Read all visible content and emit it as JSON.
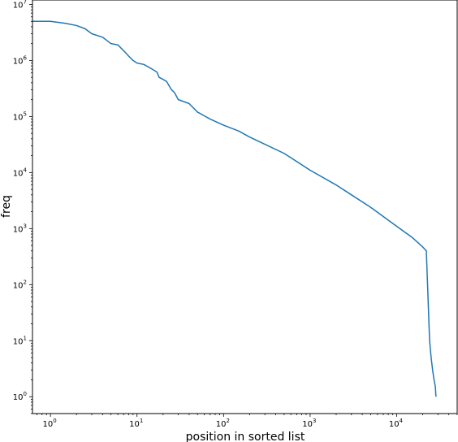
{
  "chart_data": {
    "type": "line",
    "title": "",
    "xlabel": "position in sorted list",
    "ylabel": "freq",
    "xscale": "log",
    "yscale": "log",
    "xlim": [
      0.62,
      50000
    ],
    "ylim": [
      0.5,
      12000000
    ],
    "grid": false,
    "x_ticks": [
      {
        "value": 1,
        "base": "10",
        "exp": "0"
      },
      {
        "value": 10,
        "base": "10",
        "exp": "1"
      },
      {
        "value": 100,
        "base": "10",
        "exp": "2"
      },
      {
        "value": 1000,
        "base": "10",
        "exp": "3"
      },
      {
        "value": 10000,
        "base": "10",
        "exp": "4"
      }
    ],
    "y_ticks": [
      {
        "value": 1,
        "base": "10",
        "exp": "0"
      },
      {
        "value": 10,
        "base": "10",
        "exp": "1"
      },
      {
        "value": 100,
        "base": "10",
        "exp": "2"
      },
      {
        "value": 1000,
        "base": "10",
        "exp": "3"
      },
      {
        "value": 10000,
        "base": "10",
        "exp": "4"
      },
      {
        "value": 100000,
        "base": "10",
        "exp": "5"
      },
      {
        "value": 1000000,
        "base": "10",
        "exp": "6"
      },
      {
        "value": 10000000,
        "base": "10",
        "exp": "7"
      }
    ],
    "series": [
      {
        "color": "#1f77b4",
        "x": [
          0.62,
          1,
          1.5,
          2,
          2.5,
          3,
          4,
          5,
          6,
          7,
          8,
          9,
          10,
          12,
          15,
          17,
          18,
          20,
          22,
          25,
          27,
          30,
          40,
          50,
          70,
          100,
          150,
          200,
          300,
          500,
          1000,
          2000,
          3000,
          5000,
          10000,
          15000,
          20000,
          22000,
          24000,
          25000,
          26000,
          27000,
          28000,
          28300,
          28500
        ],
        "y": [
          5000000,
          5000000,
          4600000,
          4200000,
          3700000,
          3000000,
          2600000,
          2000000,
          1900000,
          1500000,
          1200000,
          1000000,
          900000,
          850000,
          700000,
          620000,
          500000,
          460000,
          420000,
          300000,
          270000,
          200000,
          170000,
          120000,
          90000,
          70000,
          55000,
          43000,
          32000,
          22000,
          11000,
          6000,
          4000,
          2400,
          1100,
          700,
          470,
          400,
          10,
          5,
          3,
          2,
          1.5,
          1.1,
          1
        ]
      }
    ]
  }
}
